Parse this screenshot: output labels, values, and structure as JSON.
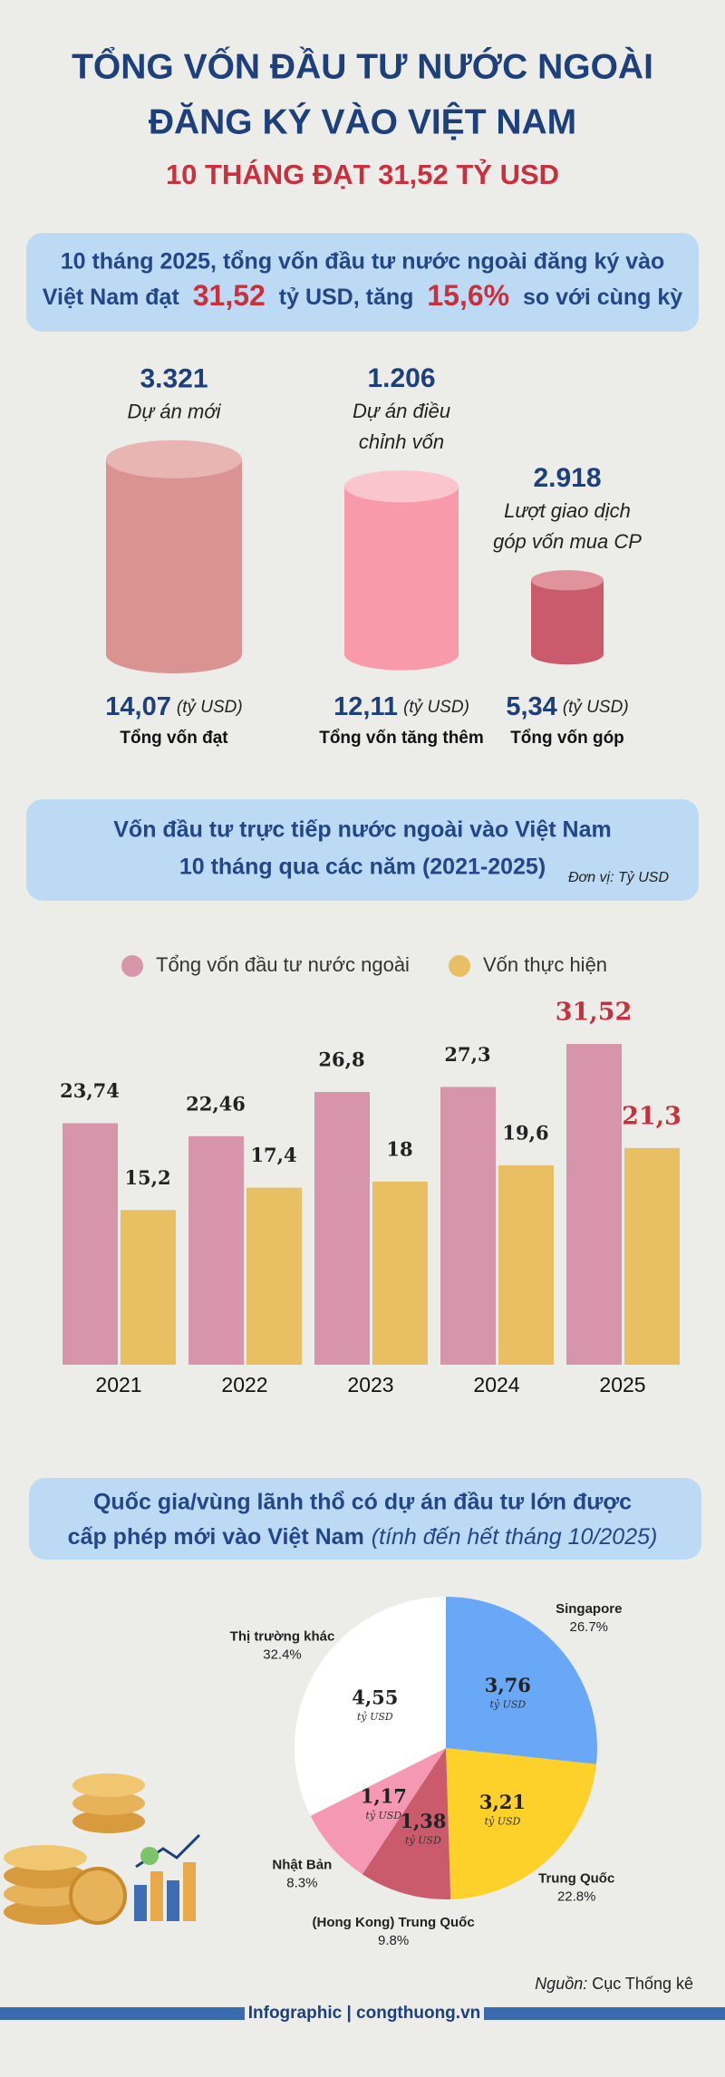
{
  "header": {
    "title_lines": [
      "TỔNG VỐN ĐẦU TƯ NƯỚC NGOÀI",
      "ĐĂNG KÝ VÀO VIỆT NAM"
    ],
    "subtitle": "10 THÁNG ĐẠT 31,52 TỶ USD"
  },
  "summary": {
    "line1": "10 tháng 2025, tổng vốn đầu tư nước ngoài đăng ký vào",
    "line2_start": "Việt Nam đạt",
    "capital": "31,52",
    "middle": "tỷ USD, tăng",
    "growth": "15,6%",
    "end": "so với cùng kỳ"
  },
  "chart_data": [
    {
      "type": "cylinder",
      "categories": [
        "Tổng vốn đạt",
        "Tổng vốn tăng thêm",
        "Tổng vốn góp"
      ],
      "values": [
        14.07,
        12.11,
        5.34
      ],
      "value_labels": [
        "14,07",
        "12,11",
        "5,34"
      ],
      "unit": "(tỷ USD)",
      "counts": [
        "3.321",
        "1.206",
        "2.918"
      ],
      "count_descriptions": [
        [
          "Dự án mới"
        ],
        [
          "Dự án điều",
          "chỉnh vốn"
        ],
        [
          "Lượt giao dịch",
          "góp vốn mua CP"
        ]
      ],
      "colors": [
        "#d99492",
        "#f99aaa",
        "#c95b6d"
      ],
      "top_colors": [
        "#e9b5b3",
        "#fbc5cd",
        "#e0929d"
      ]
    },
    {
      "type": "bar",
      "title_lines": [
        "Vốn đầu tư trực tiếp nước ngoài vào Việt Nam",
        "10 tháng qua các năm (2021-2025)"
      ],
      "unit_note": "Đơn vị: Tỷ USD",
      "categories": [
        "2021",
        "2022",
        "2023",
        "2024",
        "2025"
      ],
      "series": [
        {
          "name": "Tổng vốn đầu tư nước ngoài",
          "color": "#d795ab",
          "values": [
            23.74,
            22.46,
            26.8,
            27.3,
            31.52
          ],
          "value_labels": [
            "23,74",
            "22,46",
            "26,8",
            "27,3",
            "31,52"
          ]
        },
        {
          "name": "Vốn thực hiện",
          "color": "#e8bf62",
          "values": [
            15.2,
            17.4,
            18,
            19.6,
            21.3
          ],
          "value_labels": [
            "15,2",
            "17,4",
            "18",
            "19,6",
            "21,3"
          ]
        }
      ],
      "ylim": [
        0,
        35
      ],
      "legend": "top",
      "highlight_color": "#c9303e"
    },
    {
      "type": "pie",
      "title_lines": [
        "Quốc gia/vùng lãnh thổ có dự án đầu tư lớn được",
        "cấp phép mới vào Việt Nam"
      ],
      "title_note": "(tính đến hết tháng 10/2025)",
      "categories": [
        "Singapore",
        "Trung Quốc",
        "(Hong Kong) Trung Quốc",
        "Nhật Bản",
        "Thị trường khác"
      ],
      "values": [
        26.7,
        22.8,
        9.8,
        8.3,
        32.4
      ],
      "value_labels": [
        "26.7%",
        "22.8%",
        "9.8%",
        "8.3%",
        "32.4%"
      ],
      "colors": [
        "#68a8f6",
        "#fdd02a",
        "#c95b6d",
        "#f598b4",
        "#ffffff"
      ],
      "amounts": [
        3.76,
        3.21,
        1.38,
        1.17,
        4.55
      ],
      "amount_labels": [
        "3,76",
        "3,21",
        "1,38",
        "1,17",
        "4,55"
      ],
      "amount_unit": "tỷ USD"
    }
  ],
  "footer": {
    "source_label": "Nguồn:",
    "source": "Cục Thống kê",
    "credit": "Infographic | congthuong.vn"
  }
}
